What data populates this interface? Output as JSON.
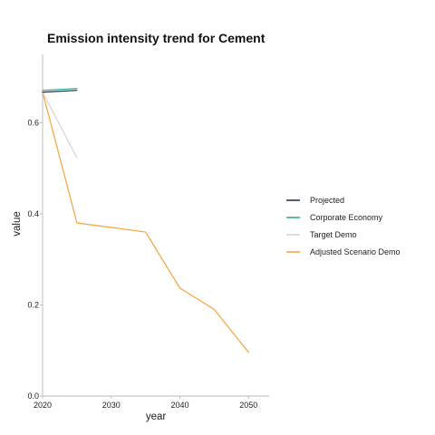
{
  "chart_data": {
    "type": "line",
    "title": "Emission intensity trend for Cement",
    "xlabel": "year",
    "ylabel": "value",
    "xlim": [
      2020,
      2053
    ],
    "ylim": [
      0,
      0.75
    ],
    "x_ticks": [
      2020,
      2030,
      2040,
      2050
    ],
    "y_ticks": [
      0.0,
      0.2,
      0.4,
      0.6
    ],
    "y_tick_labels": [
      "0.0",
      "0.2",
      "0.4",
      "0.6"
    ],
    "grid": false,
    "legend_position": "right",
    "series": [
      {
        "name": "Projected",
        "color": "#1c2a4a",
        "x": [
          2020,
          2025
        ],
        "y": [
          0.667,
          0.671
        ]
      },
      {
        "name": "Corporate Economy",
        "color": "#26a985",
        "x": [
          2020,
          2025
        ],
        "y": [
          0.671,
          0.675
        ]
      },
      {
        "name": "Target Demo",
        "color": "#d3d3d3",
        "x": [
          2020,
          2025
        ],
        "y": [
          0.667,
          0.523
        ]
      },
      {
        "name": "Adjusted Scenario Demo",
        "color": "#f7a13c",
        "x": [
          2020,
          2025,
          2030,
          2035,
          2040,
          2045,
          2050
        ],
        "y": [
          0.667,
          0.38,
          0.37,
          0.36,
          0.237,
          0.19,
          0.096
        ]
      }
    ]
  }
}
